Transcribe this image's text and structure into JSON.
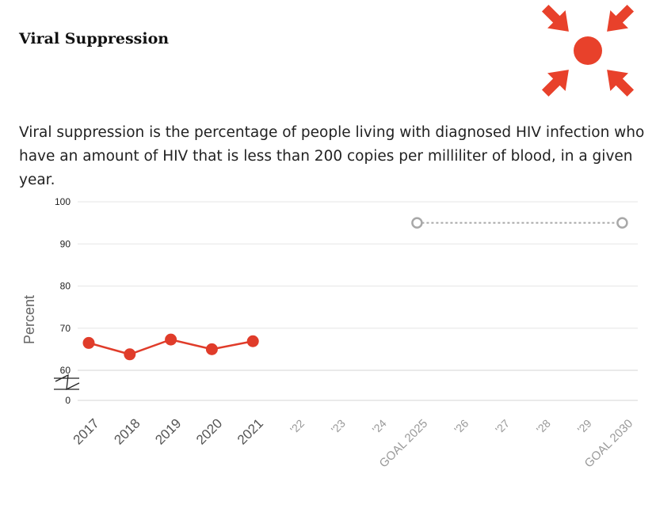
{
  "header": {
    "title": "Viral Suppression",
    "logo_icon": "arrows-converging-to-dot-icon",
    "logo_color": "#e8412b"
  },
  "description": "Viral suppression is the percentage of people living with diagnosed HIV infection who have an amount of HIV that is less than 200 copies per milliliter of blood, in a given year.",
  "chart_data": {
    "type": "line",
    "ylabel": "Percent",
    "yticks": [
      "100",
      "90",
      "80",
      "70",
      "60",
      "0"
    ],
    "ylim": [
      60,
      100
    ],
    "axis_break": "between 0 and 60",
    "categories": [
      "2017",
      "2018",
      "2019",
      "2020",
      "2021",
      "'22",
      "'23",
      "'24",
      "GOAL 2025",
      "'26",
      "'27",
      "'28",
      "'29",
      "GOAL 2030"
    ],
    "series": [
      {
        "color": "#e03c2a",
        "style": "solid",
        "points": [
          {
            "x": "2017",
            "y": 66.5
          },
          {
            "x": "2018",
            "y": 63.8
          },
          {
            "x": "2019",
            "y": 67.3
          },
          {
            "x": "2020",
            "y": 65.0
          },
          {
            "x": "2021",
            "y": 66.9
          }
        ]
      },
      {
        "color": "#a8a8a8",
        "style": "dotted",
        "points": [
          {
            "x": "GOAL 2025",
            "y": 95
          },
          {
            "x": "GOAL 2030",
            "y": 95
          }
        ]
      }
    ],
    "grid": true
  }
}
